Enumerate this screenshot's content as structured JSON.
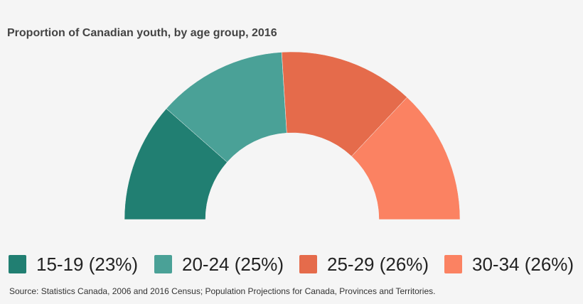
{
  "chart_data": {
    "type": "pie",
    "variant": "half-donut",
    "title": "Proportion of Canadian youth, by age group, 2016",
    "categories": [
      "15-19",
      "20-24",
      "25-29",
      "30-34"
    ],
    "values": [
      23,
      25,
      26,
      26
    ],
    "unit": "%",
    "colors": [
      "#217f72",
      "#4aa197",
      "#e56b4b",
      "#fb8262"
    ],
    "legend": {
      "placement": "bottom",
      "entries": [
        "15-19 (23%)",
        "20-24 (25%)",
        "25-29 (26%)",
        "30-34 (26%)"
      ]
    },
    "source": "Source: Statistics Canada, 2006 and 2016 Census; Population Projections for Canada, Provinces and Territories."
  }
}
